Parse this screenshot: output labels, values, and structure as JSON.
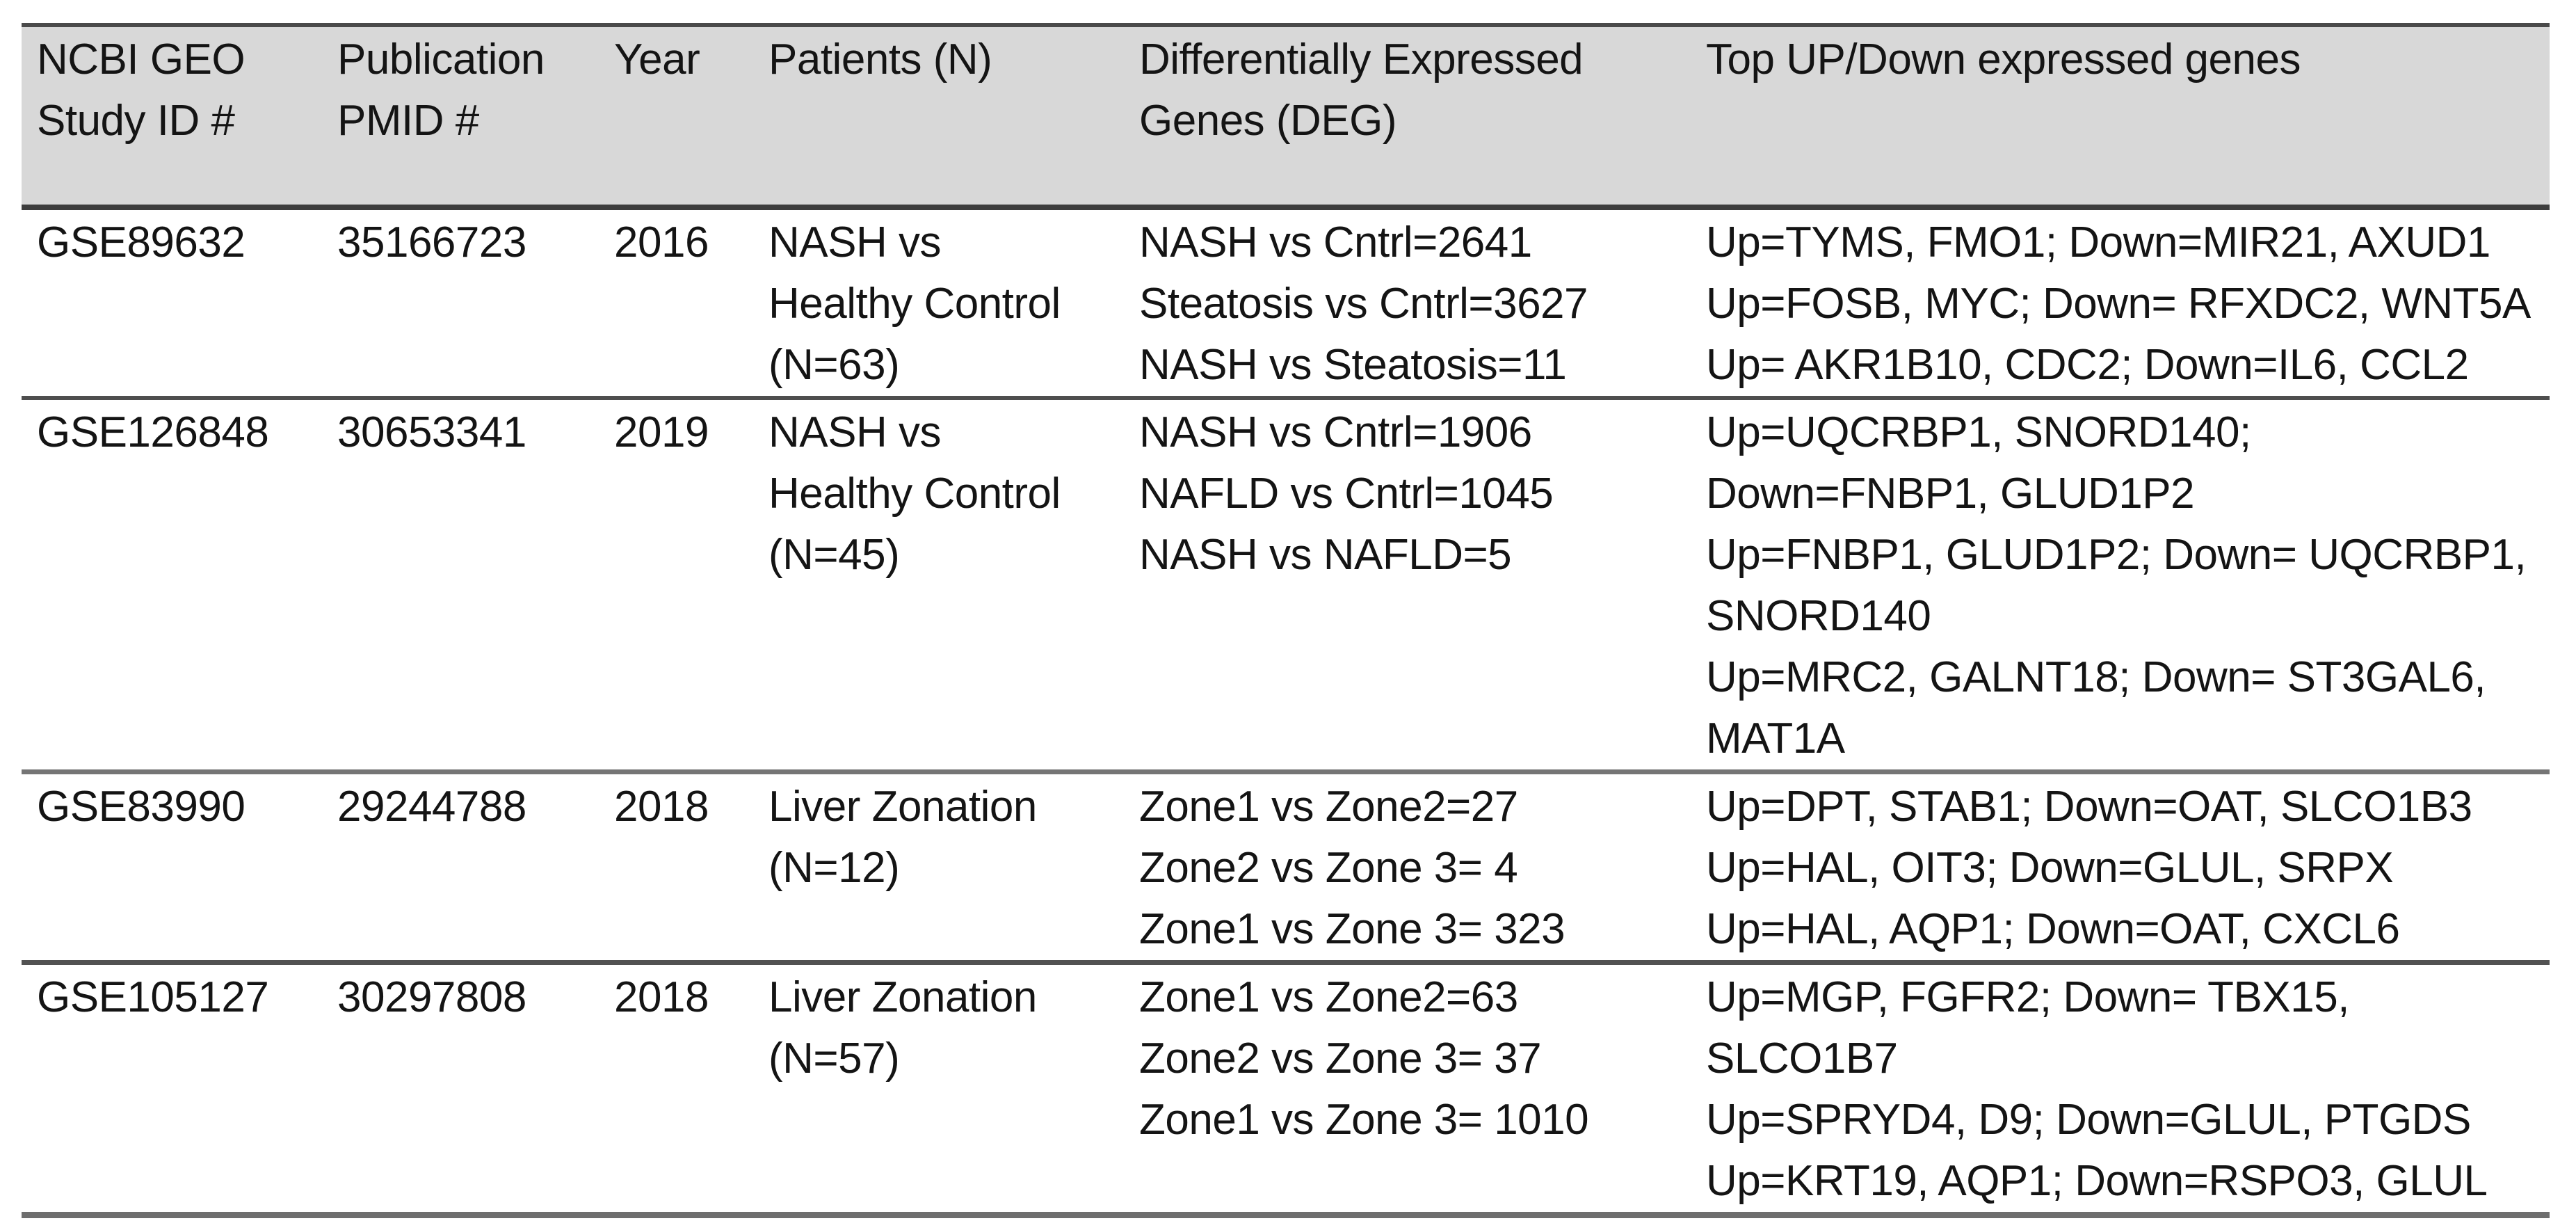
{
  "colors": {
    "header_background": "#d8d8d8",
    "rule_dark": "#474747",
    "rule_gray": "#707070",
    "text": "#141414"
  },
  "table": {
    "columns": [
      {
        "id": "study_id",
        "lines": [
          "NCBI GEO",
          "Study ID #"
        ]
      },
      {
        "id": "pmid",
        "lines": [
          "Publication",
          "PMID #"
        ]
      },
      {
        "id": "year",
        "lines": [
          "Year"
        ]
      },
      {
        "id": "patients",
        "lines": [
          "Patients (N)"
        ]
      },
      {
        "id": "deg",
        "lines": [
          "Differentially Expressed",
          "Genes (DEG)"
        ]
      },
      {
        "id": "genes",
        "lines": [
          "Top UP/Down expressed genes"
        ]
      }
    ],
    "rows": [
      {
        "study_id": "GSE89632",
        "pmid": "35166723",
        "year": "2016",
        "patients_lines": [
          "NASH vs",
          "Healthy Control",
          "(N=63)"
        ],
        "deg_lines": [
          "NASH vs Cntrl=2641",
          "Steatosis vs Cntrl=3627",
          "NASH vs Steatosis=11"
        ],
        "genes_lines": [
          "Up=TYMS, FMO1; Down=MIR21, AXUD1",
          "Up=FOSB, MYC; Down= RFXDC2, WNT5A",
          "Up= AKR1B10, CDC2; Down=IL6, CCL2"
        ]
      },
      {
        "study_id": "GSE126848",
        "pmid": "30653341",
        "year": "2019",
        "patients_lines": [
          "NASH vs",
          "Healthy Control",
          "(N=45)"
        ],
        "deg_lines": [
          "NASH vs Cntrl=1906",
          "NAFLD vs Cntrl=1045",
          "NASH vs NAFLD=5"
        ],
        "genes_lines": [
          "Up=UQCRBP1, SNORD140;",
          "Down=FNBP1, GLUD1P2",
          "Up=FNBP1, GLUD1P2; Down= UQCRBP1,",
          "SNORD140",
          "Up=MRC2, GALNT18; Down= ST3GAL6,",
          "MAT1A"
        ]
      },
      {
        "study_id": "GSE83990",
        "pmid": "29244788",
        "year": "2018",
        "patients_lines": [
          "Liver Zonation",
          "(N=12)"
        ],
        "deg_lines": [
          "Zone1 vs Zone2=27",
          "Zone2 vs Zone 3= 4",
          "Zone1 vs Zone 3= 323"
        ],
        "genes_lines": [
          "Up=DPT, STAB1; Down=OAT, SLCO1B3",
          "Up=HAL, OIT3; Down=GLUL, SRPX",
          "Up=HAL, AQP1; Down=OAT, CXCL6"
        ]
      },
      {
        "study_id": "GSE105127",
        "pmid": "30297808",
        "year": "2018",
        "patients_lines": [
          "Liver Zonation",
          "(N=57)"
        ],
        "deg_lines": [
          "Zone1 vs Zone2=63",
          "Zone2 vs Zone 3= 37",
          "Zone1 vs Zone 3= 1010"
        ],
        "genes_lines": [
          "Up=MGP, FGFR2; Down= TBX15,",
          "SLCO1B7",
          "Up=SPRYD4, D9; Down=GLUL, PTGDS",
          "Up=KRT19, AQP1; Down=RSPO3, GLUL"
        ]
      }
    ]
  }
}
